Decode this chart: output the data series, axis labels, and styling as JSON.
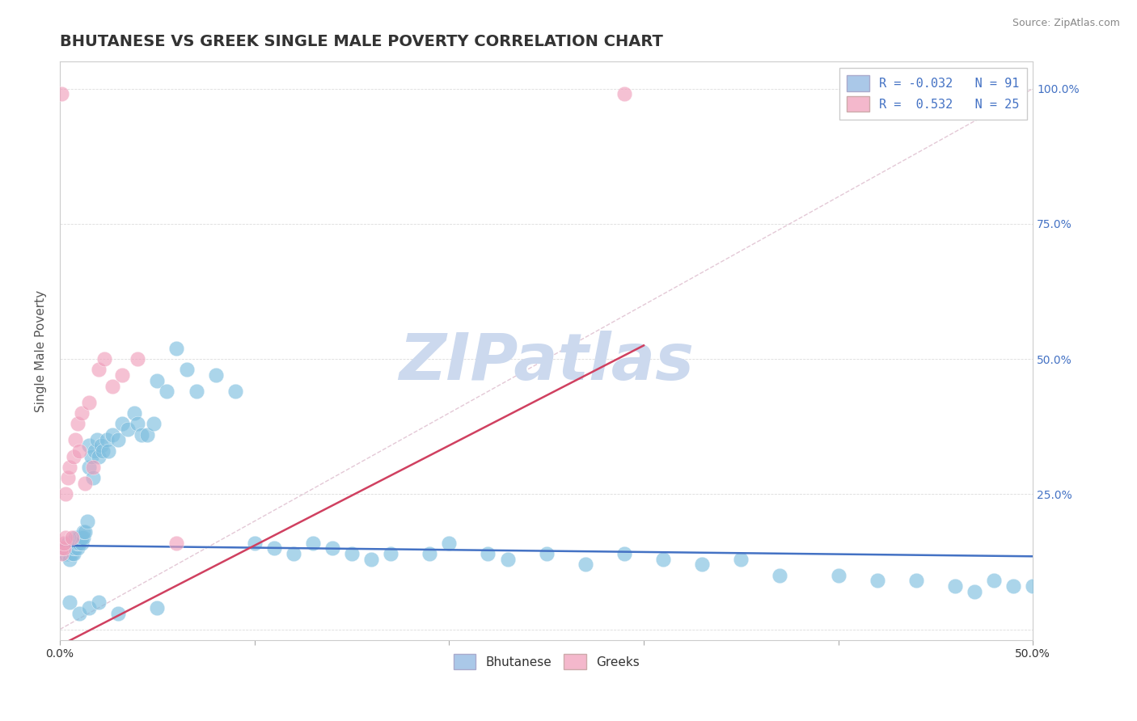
{
  "title": "BHUTANESE VS GREEK SINGLE MALE POVERTY CORRELATION CHART",
  "source": "Source: ZipAtlas.com",
  "ylabel": "Single Male Poverty",
  "ytick_positions": [
    0.0,
    0.25,
    0.5,
    0.75,
    1.0
  ],
  "ytick_labels": [
    "",
    "25.0%",
    "50.0%",
    "75.0%",
    "100.0%"
  ],
  "xlim": [
    0.0,
    0.5
  ],
  "ylim": [
    -0.02,
    1.05
  ],
  "watermark": "ZIPatlas",
  "watermark_color": "#ccd9ee",
  "bg_color": "#ffffff",
  "blue_scatter_color": "#7fbfdf",
  "pink_scatter_color": "#f0a0bc",
  "blue_line_color": "#4472c4",
  "pink_line_color": "#d04060",
  "ref_line_color": "#ddbbcc",
  "grid_color": "#cccccc",
  "blue_legend_color": "#aac8e8",
  "pink_legend_color": "#f4b8cc",
  "legend_text_color": "#4472c4",
  "title_color": "#333333",
  "source_color": "#888888",
  "ylabel_color": "#555555",
  "yticklabel_color": "#4472c4",
  "xticklabel_color": "#333333",
  "blue_reg_intercept": 0.155,
  "blue_reg_slope": -0.04,
  "pink_reg_intercept": -0.03,
  "pink_reg_slope": 1.85,
  "bhutanese_x": [
    0.001,
    0.002,
    0.002,
    0.003,
    0.003,
    0.004,
    0.004,
    0.004,
    0.005,
    0.005,
    0.005,
    0.006,
    0.006,
    0.006,
    0.007,
    0.007,
    0.007,
    0.008,
    0.008,
    0.008,
    0.009,
    0.009,
    0.009,
    0.01,
    0.01,
    0.011,
    0.011,
    0.012,
    0.012,
    0.013,
    0.014,
    0.015,
    0.015,
    0.016,
    0.017,
    0.018,
    0.019,
    0.02,
    0.021,
    0.022,
    0.024,
    0.025,
    0.027,
    0.03,
    0.032,
    0.035,
    0.038,
    0.04,
    0.042,
    0.045,
    0.048,
    0.05,
    0.055,
    0.06,
    0.065,
    0.07,
    0.08,
    0.09,
    0.1,
    0.11,
    0.12,
    0.13,
    0.14,
    0.15,
    0.16,
    0.17,
    0.19,
    0.2,
    0.22,
    0.23,
    0.25,
    0.27,
    0.29,
    0.31,
    0.33,
    0.35,
    0.37,
    0.4,
    0.42,
    0.44,
    0.46,
    0.47,
    0.48,
    0.49,
    0.5,
    0.005,
    0.01,
    0.015,
    0.02,
    0.03,
    0.05
  ],
  "bhutanese_y": [
    0.15,
    0.15,
    0.14,
    0.15,
    0.14,
    0.14,
    0.15,
    0.16,
    0.14,
    0.15,
    0.13,
    0.15,
    0.14,
    0.16,
    0.14,
    0.15,
    0.16,
    0.15,
    0.16,
    0.17,
    0.15,
    0.16,
    0.17,
    0.16,
    0.17,
    0.16,
    0.17,
    0.17,
    0.18,
    0.18,
    0.2,
    0.3,
    0.34,
    0.32,
    0.28,
    0.33,
    0.35,
    0.32,
    0.34,
    0.33,
    0.35,
    0.33,
    0.36,
    0.35,
    0.38,
    0.37,
    0.4,
    0.38,
    0.36,
    0.36,
    0.38,
    0.46,
    0.44,
    0.52,
    0.48,
    0.44,
    0.47,
    0.44,
    0.16,
    0.15,
    0.14,
    0.16,
    0.15,
    0.14,
    0.13,
    0.14,
    0.14,
    0.16,
    0.14,
    0.13,
    0.14,
    0.12,
    0.14,
    0.13,
    0.12,
    0.13,
    0.1,
    0.1,
    0.09,
    0.09,
    0.08,
    0.07,
    0.09,
    0.08,
    0.08,
    0.05,
    0.03,
    0.04,
    0.05,
    0.03,
    0.04
  ],
  "greeks_x": [
    0.001,
    0.001,
    0.002,
    0.002,
    0.003,
    0.003,
    0.004,
    0.005,
    0.006,
    0.007,
    0.008,
    0.009,
    0.01,
    0.011,
    0.013,
    0.015,
    0.017,
    0.02,
    0.023,
    0.027,
    0.032,
    0.04,
    0.06,
    0.001,
    0.29
  ],
  "greeks_y": [
    0.14,
    0.15,
    0.15,
    0.16,
    0.25,
    0.17,
    0.28,
    0.3,
    0.17,
    0.32,
    0.35,
    0.38,
    0.33,
    0.4,
    0.27,
    0.42,
    0.3,
    0.48,
    0.5,
    0.45,
    0.47,
    0.5,
    0.16,
    0.99,
    0.99
  ]
}
